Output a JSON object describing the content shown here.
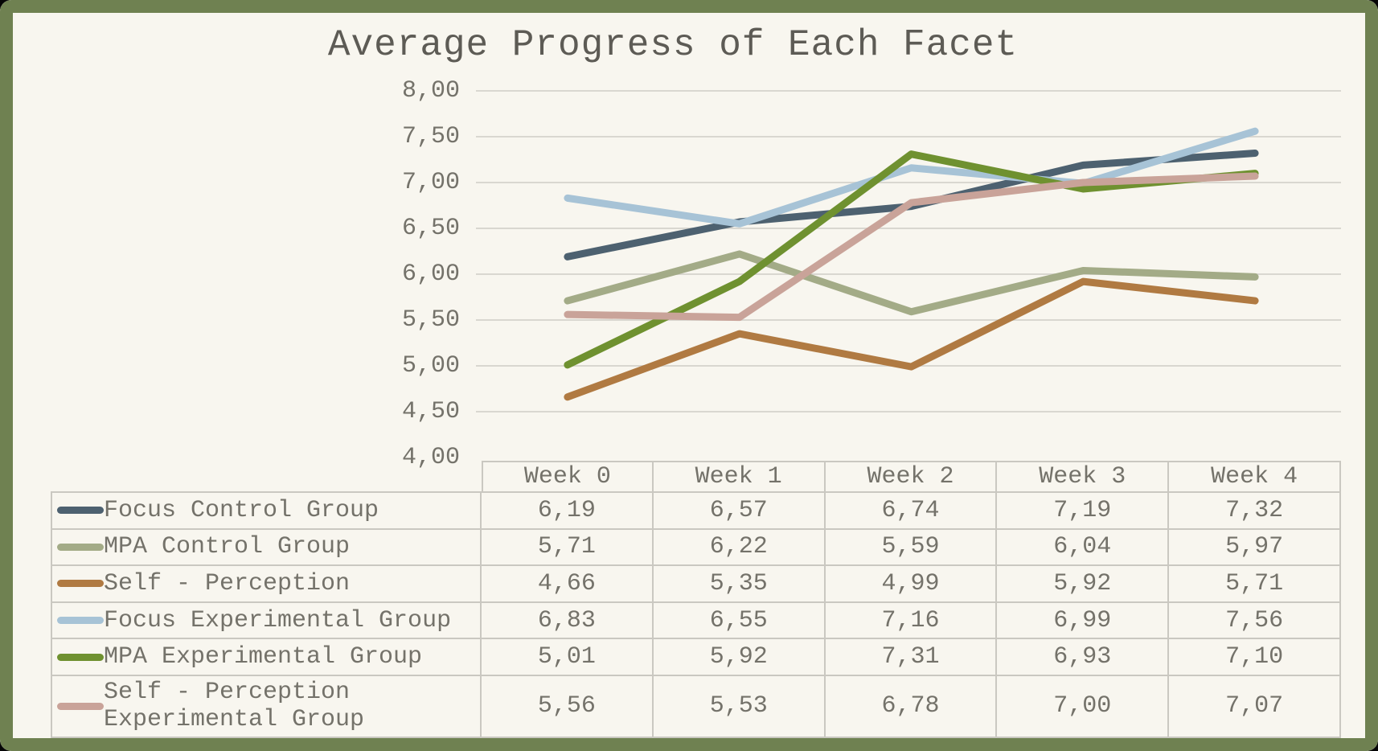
{
  "theme": {
    "frame_border_color": "#6f8151",
    "background_color": "#f8f6ef",
    "outer_background": "#050505",
    "gridline_color": "#d9d7d0",
    "table_border_color": "#cac8c1",
    "text_color": "#74726a",
    "title_color": "#5d5b55"
  },
  "chart_data": {
    "type": "line",
    "title": "Average Progress of Each Facet",
    "categories": [
      "Week 0",
      "Week 1",
      "Week 2",
      "Week 3",
      "Week 4"
    ],
    "series": [
      {
        "name": "Focus Control Group",
        "color": "#4d6170",
        "values": [
          6.19,
          6.57,
          6.74,
          7.19,
          7.32
        ]
      },
      {
        "name": "MPA Control Group",
        "color": "#a3ab87",
        "values": [
          5.71,
          6.22,
          5.59,
          6.04,
          5.97
        ]
      },
      {
        "name": "Self - Perception",
        "color": "#b07a42",
        "values": [
          4.66,
          5.35,
          4.99,
          5.92,
          5.71
        ]
      },
      {
        "name": "Focus Experimental Group",
        "color": "#a7c3d6",
        "values": [
          6.83,
          6.55,
          7.16,
          6.99,
          7.56
        ]
      },
      {
        "name": "MPA Experimental Group",
        "color": "#6f9130",
        "values": [
          5.01,
          5.92,
          7.31,
          6.93,
          7.1
        ]
      },
      {
        "name": "Self - Perception Experimental Group",
        "color": "#c9a399",
        "values": [
          5.56,
          5.53,
          6.78,
          7.0,
          7.07
        ]
      }
    ],
    "ylim": [
      4.0,
      8.0
    ],
    "ytick_step": 0.5,
    "ytick_labels": [
      "8,00",
      "7,50",
      "7,00",
      "6,50",
      "6,00",
      "5,50",
      "5,00",
      "4,50",
      "4,00"
    ],
    "decimal_separator": ",",
    "grid": true,
    "legend_position": "data-table-left",
    "data_table_shown": true,
    "xlabel": "",
    "ylabel": ""
  }
}
